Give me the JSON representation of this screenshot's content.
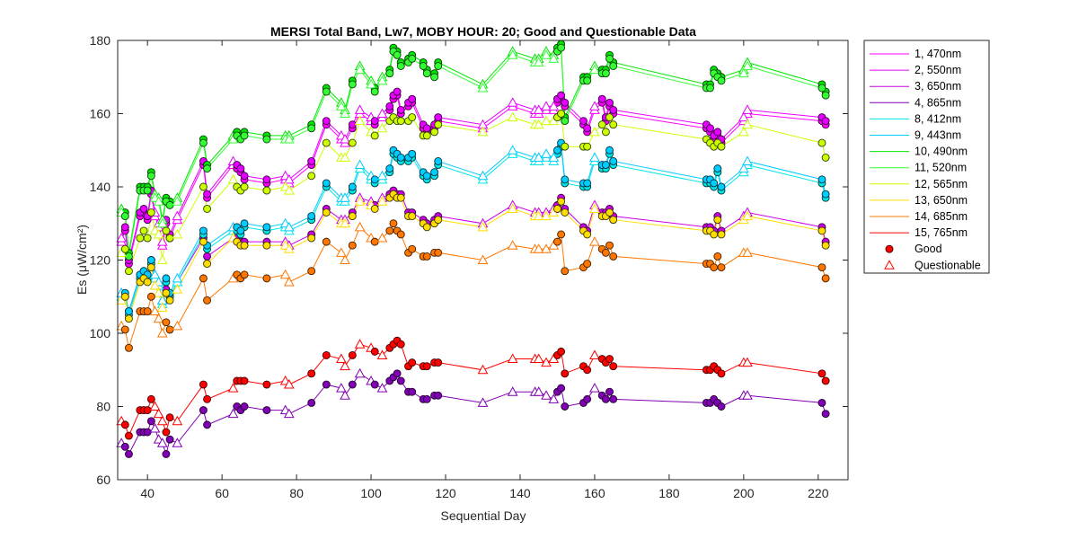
{
  "chart_data": {
    "type": "line",
    "title": "MERSI Total Band,  Lw7, MOBY HOUR: 20;  Good and Questionable Data",
    "xlabel": "Sequential Day",
    "ylabel": "Es (μW/cm²)",
    "xlim": [
      32,
      228
    ],
    "ylim": [
      60,
      180
    ],
    "xticks": [
      40,
      60,
      80,
      100,
      120,
      140,
      160,
      180,
      200,
      220
    ],
    "yticks": [
      60,
      80,
      100,
      120,
      140,
      160,
      180
    ],
    "grid": false,
    "legend_position": "outside-right",
    "x": [
      33,
      34,
      35,
      38,
      39,
      40,
      41,
      42,
      43,
      44,
      45,
      46,
      48,
      55,
      56,
      63,
      64,
      65,
      66,
      72,
      77,
      78,
      84,
      88,
      92,
      93,
      95,
      97,
      100,
      101,
      103,
      105,
      106,
      107,
      108,
      110,
      111,
      114,
      115,
      117,
      118,
      130,
      138,
      144,
      145,
      147,
      149,
      150,
      151,
      152,
      157,
      158,
      160,
      162,
      163,
      164,
      165,
      190,
      191,
      192,
      193,
      194,
      200,
      201,
      221,
      222
    ],
    "quality": [
      "Q",
      "G",
      "G",
      "G",
      "G",
      "G",
      "G",
      "Q",
      "Q",
      "Q",
      "G",
      "G",
      "Q",
      "G",
      "G",
      "Q",
      "G",
      "G",
      "G",
      "G",
      "Q",
      "Q",
      "G",
      "G",
      "Q",
      "Q",
      "G",
      "Q",
      "Q",
      "G",
      "Q",
      "G",
      "G",
      "G",
      "G",
      "G",
      "G",
      "G",
      "G",
      "G",
      "G",
      "Q",
      "Q",
      "Q",
      "Q",
      "Q",
      "Q",
      "G",
      "G",
      "G",
      "G",
      "G",
      "Q",
      "G",
      "G",
      "G",
      "G",
      "G",
      "G",
      "G",
      "G",
      "G",
      "Q",
      "Q",
      "G",
      "G"
    ],
    "series": [
      {
        "name": "1, 470nm",
        "color": "#ff00ff",
        "values": [
          125,
          128,
          119,
          132,
          133,
          131,
          138,
          132,
          129,
          124,
          130,
          126,
          131,
          146,
          137,
          146,
          145,
          144,
          142,
          141,
          142,
          141,
          146,
          157,
          153,
          152,
          156,
          160,
          158,
          157,
          159,
          161,
          164,
          165,
          160,
          162,
          163,
          156,
          155,
          156,
          158,
          156,
          162,
          160,
          160,
          161,
          161,
          163,
          164,
          162,
          157,
          155,
          161,
          163,
          158,
          162,
          160,
          156,
          155,
          153,
          154,
          152,
          158,
          160,
          158,
          157
        ]
      },
      {
        "name": "2, 550nm",
        "color": "#e600ff",
        "values": [
          126,
          129,
          120,
          133,
          134,
          132,
          139,
          133,
          130,
          125,
          131,
          127,
          132,
          147,
          138,
          147,
          146,
          145,
          143,
          142,
          143,
          142,
          147,
          158,
          154,
          153,
          157,
          161,
          159,
          158,
          160,
          162,
          165,
          166,
          161,
          163,
          164,
          157,
          156,
          157,
          159,
          157,
          163,
          161,
          161,
          162,
          162,
          164,
          165,
          163,
          158,
          156,
          162,
          164,
          159,
          163,
          161,
          157,
          156,
          154,
          155,
          153,
          159,
          161,
          159,
          158
        ]
      },
      {
        "name": "3, 650nm",
        "color": "#cc00e6",
        "values": [
          111,
          110,
          106,
          116,
          117,
          116,
          120,
          116,
          114,
          109,
          112,
          110,
          114,
          126,
          121,
          126,
          126,
          125,
          125,
          125,
          125,
          124,
          127,
          134,
          131,
          131,
          133,
          137,
          136,
          135,
          137,
          138,
          139,
          138,
          138,
          133,
          133,
          131,
          130,
          131,
          132,
          130,
          135,
          133,
          133,
          133,
          134,
          135,
          137,
          134,
          129,
          128,
          135,
          133,
          133,
          134,
          132,
          129,
          129,
          128,
          132,
          128,
          132,
          133,
          129,
          125
        ]
      },
      {
        "name": "4, 865nm",
        "color": "#8000b3",
        "values": [
          70,
          69,
          67,
          73,
          73,
          73,
          76,
          74,
          71,
          70,
          67,
          71,
          70,
          79,
          75,
          78,
          80,
          79,
          80,
          79,
          79,
          78,
          81,
          86,
          85,
          83,
          86,
          89,
          87,
          86,
          85,
          87,
          88,
          89,
          87,
          84,
          84,
          82,
          82,
          83,
          83,
          81,
          84,
          84,
          84,
          83,
          82,
          84,
          85,
          80,
          81,
          82,
          85,
          83,
          82,
          84,
          82,
          81,
          81,
          82,
          81,
          80,
          83,
          83,
          81,
          78
        ]
      },
      {
        "name": "8, 412nm",
        "color": "#00e6e6",
        "values": [
          110,
          110,
          105,
          115,
          116,
          115,
          119,
          115,
          113,
          108,
          114,
          110,
          114,
          127,
          123,
          128,
          128,
          127,
          129,
          128,
          129,
          128,
          131,
          140,
          136,
          136,
          139,
          145,
          142,
          141,
          142,
          144,
          149,
          148,
          147,
          147,
          148,
          143,
          142,
          143,
          146,
          142,
          149,
          147,
          147,
          148,
          147,
          149,
          151,
          141,
          140,
          140,
          147,
          145,
          145,
          149,
          146,
          141,
          141,
          140,
          144,
          139,
          144,
          146,
          141,
          137
        ]
      },
      {
        "name": "9, 443nm",
        "color": "#00ccff",
        "values": [
          111,
          111,
          106,
          116,
          117,
          116,
          120,
          116,
          114,
          109,
          115,
          111,
          115,
          128,
          124,
          129,
          129,
          128,
          130,
          129,
          130,
          129,
          132,
          141,
          137,
          137,
          140,
          146,
          143,
          142,
          143,
          145,
          150,
          149,
          148,
          148,
          149,
          144,
          143,
          144,
          147,
          143,
          150,
          148,
          148,
          149,
          148,
          150,
          152,
          142,
          141,
          141,
          148,
          146,
          146,
          150,
          147,
          142,
          142,
          141,
          145,
          140,
          145,
          147,
          142,
          138
        ]
      },
      {
        "name": "10, 490nm",
        "color": "#00e600",
        "values": [
          134,
          133,
          122,
          140,
          140,
          140,
          144,
          138,
          137,
          131,
          137,
          136,
          137,
          153,
          146,
          154,
          155,
          154,
          155,
          154,
          154,
          154,
          157,
          167,
          163,
          161,
          169,
          173,
          169,
          167,
          170,
          172,
          178,
          177,
          174,
          175,
          176,
          174,
          172,
          171,
          174,
          168,
          177,
          175,
          175,
          177,
          176,
          178,
          179,
          159,
          170,
          170,
          173,
          172,
          172,
          176,
          174,
          168,
          168,
          172,
          171,
          170,
          172,
          174,
          168,
          166
        ]
      },
      {
        "name": "11, 520nm",
        "color": "#33ff33",
        "values": [
          133,
          132,
          121,
          139,
          139,
          139,
          143,
          137,
          136,
          130,
          136,
          135,
          136,
          152,
          145,
          153,
          154,
          153,
          154,
          153,
          153,
          153,
          156,
          166,
          162,
          160,
          168,
          172,
          168,
          166,
          169,
          171,
          177,
          176,
          173,
          174,
          175,
          173,
          171,
          170,
          173,
          167,
          176,
          174,
          174,
          176,
          175,
          177,
          178,
          158,
          169,
          169,
          172,
          171,
          171,
          175,
          173,
          167,
          167,
          171,
          170,
          169,
          171,
          173,
          167,
          165
        ]
      },
      {
        "name": "12, 565nm",
        "color": "#ccff00",
        "values": [
          122,
          123,
          117,
          126,
          128,
          126,
          133,
          128,
          127,
          120,
          128,
          126,
          127,
          140,
          134,
          142,
          140,
          139,
          140,
          139,
          140,
          139,
          143,
          152,
          148,
          148,
          152,
          158,
          155,
          154,
          156,
          158,
          159,
          158,
          158,
          158,
          159,
          154,
          154,
          155,
          157,
          155,
          159,
          157,
          157,
          158,
          158,
          159,
          160,
          151,
          151,
          151,
          155,
          157,
          155,
          159,
          157,
          153,
          152,
          151,
          152,
          151,
          155,
          157,
          152,
          148
        ]
      },
      {
        "name": "13, 650nm",
        "color": "#ffdd00",
        "values": [
          109,
          110,
          104,
          114,
          115,
          114,
          118,
          113,
          111,
          107,
          111,
          109,
          112,
          125,
          119,
          126,
          125,
          124,
          124,
          124,
          124,
          123,
          126,
          133,
          130,
          130,
          132,
          136,
          135,
          134,
          136,
          137,
          138,
          137,
          137,
          132,
          132,
          130,
          129,
          130,
          131,
          129,
          134,
          132,
          132,
          132,
          133,
          134,
          136,
          133,
          128,
          127,
          134,
          132,
          132,
          133,
          131,
          128,
          128,
          127,
          131,
          127,
          131,
          132,
          128,
          124
        ]
      },
      {
        "name": "14, 685nm",
        "color": "#ff7700",
        "values": [
          102,
          101,
          96,
          106,
          106,
          106,
          110,
          106,
          104,
          100,
          103,
          101,
          102,
          115,
          109,
          115,
          116,
          115,
          116,
          115,
          116,
          114,
          117,
          125,
          122,
          120,
          124,
          129,
          126,
          125,
          126,
          128,
          130,
          128,
          127,
          122,
          123,
          121,
          121,
          122,
          122,
          120,
          124,
          123,
          123,
          123,
          124,
          125,
          127,
          117,
          118,
          119,
          125,
          123,
          122,
          124,
          121,
          119,
          119,
          118,
          121,
          118,
          122,
          122,
          118,
          115
        ]
      },
      {
        "name": "15, 765nm",
        "color": "#ff0000",
        "values": [
          76,
          75,
          72,
          79,
          79,
          79,
          82,
          80,
          78,
          76,
          73,
          77,
          76,
          86,
          82,
          85,
          87,
          87,
          87,
          86,
          87,
          86,
          89,
          94,
          93,
          91,
          94,
          97,
          96,
          95,
          94,
          96,
          97,
          98,
          97,
          91,
          92,
          91,
          91,
          92,
          92,
          90,
          93,
          93,
          93,
          92,
          93,
          94,
          95,
          89,
          91,
          90,
          94,
          93,
          92,
          93,
          91,
          90,
          90,
          91,
          90,
          89,
          92,
          92,
          89,
          87
        ]
      }
    ],
    "legend": {
      "good_label": "Good",
      "questionable_label": "Questionable"
    }
  }
}
